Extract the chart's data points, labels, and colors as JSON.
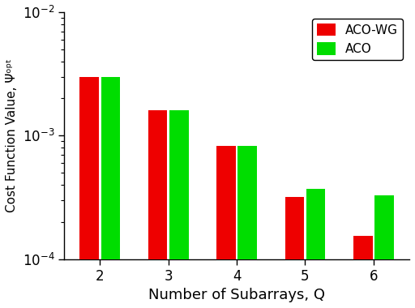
{
  "categories": [
    2,
    3,
    4,
    5,
    6
  ],
  "aco_wg_values": [
    0.003,
    0.0016,
    0.00082,
    0.00032,
    0.000155
  ],
  "aco_values": [
    0.003,
    0.0016,
    0.00082,
    0.00037,
    0.00033
  ],
  "aco_wg_color": "#ee0000",
  "aco_color": "#00dd00",
  "xlabel": "Number of Subarrays, Q",
  "ylabel": "Cost Function Value, Ψᵒᵖᵗ",
  "ylim_low": 0.0001,
  "ylim_high": 0.01,
  "bar_width": 0.28,
  "bar_gap": 0.03,
  "legend_labels": [
    "ACO-WG",
    "ACO"
  ],
  "background_color": "#ffffff",
  "xlabel_fontsize": 13,
  "ylabel_fontsize": 11,
  "tick_fontsize": 12,
  "legend_fontsize": 11
}
